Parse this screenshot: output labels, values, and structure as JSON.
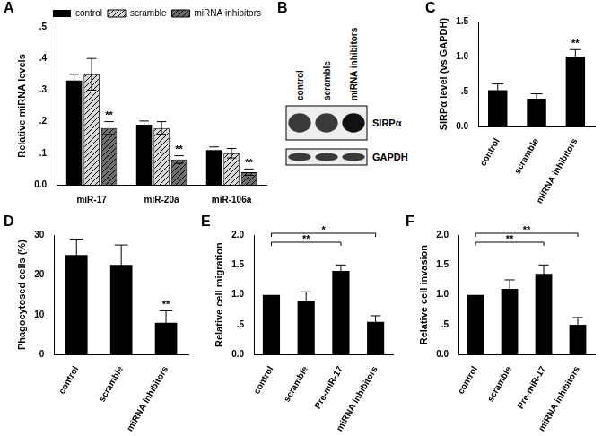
{
  "chart_data": [
    {
      "type": "bar",
      "title": "A",
      "y_label": "Relative miRNA levels",
      "categories": [
        "miR-17",
        "miR-20a",
        "miR-106a"
      ],
      "series": [
        {
          "name": "control",
          "color": "#000000",
          "values": [
            0.33,
            0.19,
            0.11
          ],
          "errors": [
            0.02,
            0.012,
            0.01
          ],
          "annotations": [
            null,
            null,
            null
          ]
        },
        {
          "name": "scramble",
          "color": "#d9d9d9",
          "values": [
            0.35,
            0.18,
            0.1
          ],
          "errors": [
            0.05,
            0.02,
            0.015
          ],
          "annotations": [
            null,
            null,
            null
          ]
        },
        {
          "name": "miRNA inhibitors",
          "color": "#6e6e6e",
          "values": [
            0.18,
            0.08,
            0.04
          ],
          "errors": [
            0.02,
            0.012,
            0.01
          ],
          "annotations": [
            "**",
            "**",
            "**"
          ]
        }
      ],
      "ylim": [
        0,
        0.5
      ],
      "yticks": [
        {
          "value": 0,
          "label": "0.0"
        },
        {
          "value": 0.1,
          "label": ".1"
        },
        {
          "value": 0.2,
          "label": ".2"
        },
        {
          "value": 0.3,
          "label": ".3"
        },
        {
          "value": 0.4,
          "label": ".4"
        },
        {
          "value": 0.5,
          "label": ".5"
        }
      ],
      "legend": "top",
      "grid": false
    },
    {
      "type": "bar",
      "title": "C",
      "y_label": "SIRPα level (vs GAPDH)",
      "categories": [
        "control",
        "scramble",
        "miRNA inhibitors"
      ],
      "values": [
        0.52,
        0.4,
        1.0
      ],
      "errors": [
        0.09,
        0.07,
        0.1
      ],
      "annotations": [
        null,
        null,
        "**"
      ],
      "color": "#000000",
      "ylim": [
        0,
        1.5
      ],
      "yticks": [
        {
          "value": 0,
          "label": "0.0"
        },
        {
          "value": 0.5,
          "label": ".5"
        },
        {
          "value": 1,
          "label": "1.0"
        },
        {
          "value": 1.5,
          "label": "1.5"
        }
      ],
      "grid": false
    },
    {
      "type": "bar",
      "title": "D",
      "y_label": "Phagocytosed cells (%)",
      "categories": [
        "control",
        "scramble",
        "miRNA inhibitors"
      ],
      "values": [
        25,
        22.5,
        8
      ],
      "errors": [
        4,
        5,
        3
      ],
      "annotations": [
        null,
        null,
        "**"
      ],
      "color": "#000000",
      "ylim": [
        0,
        30
      ],
      "yticks": [
        0,
        10,
        20,
        30
      ],
      "grid": false
    },
    {
      "type": "bar",
      "title": "E",
      "y_label": "Relative cell migration",
      "categories": [
        "control",
        "scramble",
        "Pre-miR-17",
        "miRNA inhibitors"
      ],
      "values": [
        1.0,
        0.9,
        1.4,
        0.55
      ],
      "errors": [
        null,
        0.15,
        0.1,
        0.1
      ],
      "brackets": [
        {
          "from": "control",
          "to": "Pre-miR-17",
          "text": "**"
        },
        {
          "from": "control",
          "to": "miRNA inhibitors",
          "text": "*"
        }
      ],
      "color": "#000000",
      "ylim": [
        0,
        2
      ],
      "yticks": [
        {
          "value": 0,
          "label": "0.0"
        },
        {
          "value": 0.5,
          "label": ".5"
        },
        {
          "value": 1,
          "label": "1.0"
        },
        {
          "value": 1.5,
          "label": "1.5"
        },
        {
          "value": 2,
          "label": "2.0"
        }
      ],
      "grid": false
    },
    {
      "type": "bar",
      "title": "F",
      "y_label": "Relative cell invasion",
      "categories": [
        "control",
        "scramble",
        "Pre-miR-17",
        "miRNA inhibitors"
      ],
      "values": [
        1.0,
        1.1,
        1.35,
        0.5
      ],
      "errors": [
        null,
        0.15,
        0.15,
        0.12
      ],
      "brackets": [
        {
          "from": "control",
          "to": "Pre-miR-17",
          "text": "**"
        },
        {
          "from": "control",
          "to": "miRNA inhibitors",
          "text": "**"
        }
      ],
      "color": "#000000",
      "ylim": [
        0,
        2
      ],
      "yticks": [
        {
          "value": 0,
          "label": "0.0"
        },
        {
          "value": 0.5,
          "label": ".5"
        },
        {
          "value": 1,
          "label": "1.0"
        },
        {
          "value": 1.5,
          "label": "1.5"
        },
        {
          "value": 2,
          "label": "2.0"
        }
      ],
      "grid": false
    }
  ],
  "blot": {
    "title": "B",
    "lanes": [
      "control",
      "scramble",
      "miRNA inhibitors"
    ],
    "bands": [
      "SIRPα",
      "GAPDH"
    ]
  }
}
